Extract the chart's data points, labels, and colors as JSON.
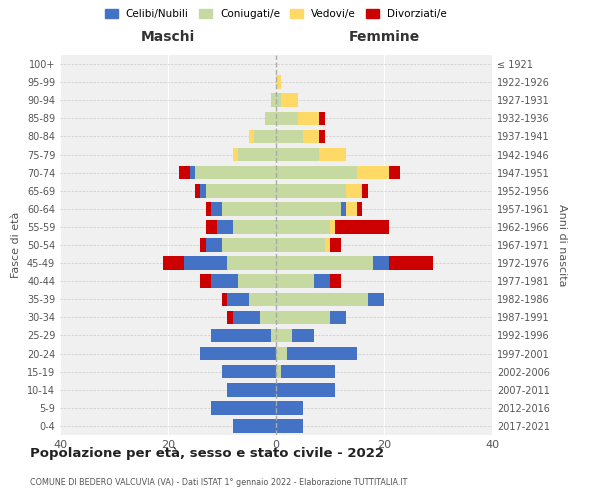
{
  "age_groups": [
    "0-4",
    "5-9",
    "10-14",
    "15-19",
    "20-24",
    "25-29",
    "30-34",
    "35-39",
    "40-44",
    "45-49",
    "50-54",
    "55-59",
    "60-64",
    "65-69",
    "70-74",
    "75-79",
    "80-84",
    "85-89",
    "90-94",
    "95-99",
    "100+"
  ],
  "birth_years": [
    "2017-2021",
    "2012-2016",
    "2007-2011",
    "2002-2006",
    "1997-2001",
    "1992-1996",
    "1987-1991",
    "1982-1986",
    "1977-1981",
    "1972-1976",
    "1967-1971",
    "1962-1966",
    "1957-1961",
    "1952-1956",
    "1947-1951",
    "1942-1946",
    "1937-1941",
    "1932-1936",
    "1927-1931",
    "1922-1926",
    "≤ 1921"
  ],
  "maschi": {
    "celibi": [
      8,
      12,
      9,
      10,
      14,
      11,
      5,
      4,
      5,
      8,
      3,
      3,
      2,
      1,
      1,
      0,
      0,
      0,
      0,
      0,
      0
    ],
    "coniugati": [
      0,
      0,
      0,
      0,
      0,
      1,
      3,
      5,
      7,
      9,
      10,
      8,
      10,
      13,
      15,
      7,
      4,
      2,
      1,
      0,
      0
    ],
    "vedovi": [
      0,
      0,
      0,
      0,
      0,
      0,
      0,
      0,
      0,
      0,
      0,
      0,
      0,
      0,
      0,
      1,
      1,
      0,
      0,
      0,
      0
    ],
    "divorziati": [
      0,
      0,
      0,
      0,
      0,
      0,
      1,
      1,
      2,
      4,
      1,
      2,
      1,
      1,
      2,
      0,
      0,
      0,
      0,
      0,
      0
    ]
  },
  "femmine": {
    "nubili": [
      5,
      5,
      11,
      10,
      13,
      4,
      3,
      3,
      3,
      3,
      0,
      0,
      1,
      0,
      0,
      0,
      0,
      0,
      0,
      0,
      0
    ],
    "coniugate": [
      0,
      0,
      0,
      1,
      2,
      3,
      10,
      17,
      7,
      18,
      9,
      10,
      12,
      13,
      15,
      8,
      5,
      4,
      1,
      0,
      0
    ],
    "vedove": [
      0,
      0,
      0,
      0,
      0,
      0,
      0,
      0,
      0,
      0,
      1,
      1,
      2,
      3,
      6,
      5,
      3,
      4,
      3,
      1,
      0
    ],
    "divorziate": [
      0,
      0,
      0,
      0,
      0,
      0,
      0,
      0,
      2,
      8,
      2,
      10,
      1,
      1,
      2,
      0,
      1,
      1,
      0,
      0,
      0
    ]
  },
  "colors": {
    "celibi": "#4472C4",
    "coniugati": "#c5d9a0",
    "vedovi": "#FFD966",
    "divorziati": "#CC0000"
  },
  "xlim": 40,
  "title": "Popolazione per età, sesso e stato civile - 2022",
  "subtitle": "COMUNE DI BEDERO VALCUVIA (VA) - Dati ISTAT 1° gennaio 2022 - Elaborazione TUTTITALIA.IT",
  "xlabel_left": "Maschi",
  "xlabel_right": "Femmine",
  "ylabel_left": "Fasce di età",
  "ylabel_right": "Anni di nascita",
  "legend_labels": [
    "Celibi/Nubili",
    "Coniugati/e",
    "Vedovi/e",
    "Divorziati/e"
  ],
  "bg_color": "#ffffff",
  "plot_bg_color": "#f0f0f0"
}
